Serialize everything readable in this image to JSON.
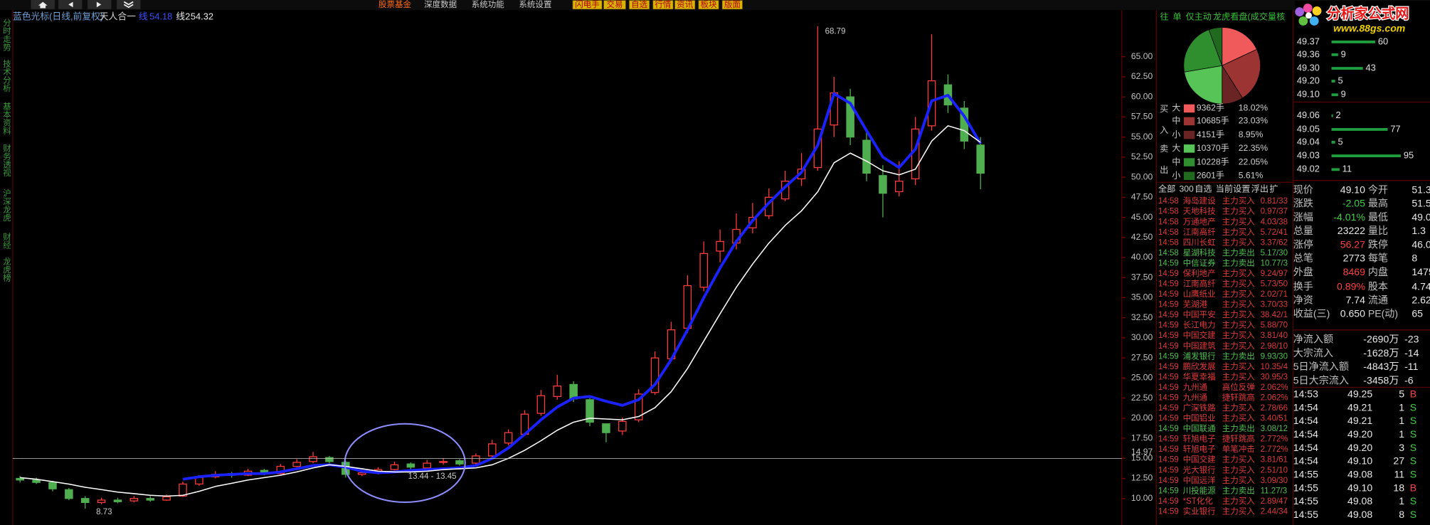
{
  "toolbar": {
    "menus": [
      "股票基金",
      "深度数据",
      "系统功能",
      "系统设置"
    ],
    "buttons": [
      "闪电手",
      "交易",
      "自选",
      "行情",
      "资讯",
      "板块",
      "版面"
    ]
  },
  "logo": {
    "title": "分析家公式网",
    "url": "www.88gs.com"
  },
  "side_tabs": [
    "分时走势",
    "技术分析",
    "基本资料",
    "财务透视",
    "沪深龙虎",
    "财经",
    "龙虎榜"
  ],
  "chart_data": {
    "type": "candlestick",
    "title": "蓝色光标(日线,前复权)",
    "indicator": "天人合一",
    "annotation": "13.44 - 13.45",
    "reference_line": 14.97,
    "ylim": [
      6.7,
      70.7
    ],
    "yticks": [
      {
        "value": 10,
        "label": "10.00"
      },
      {
        "value": 12.5,
        "label": "12.50"
      },
      {
        "value": 15,
        "label": "15.00"
      },
      {
        "value": 17.5,
        "label": "17.50"
      },
      {
        "value": 20,
        "label": "20.00"
      },
      {
        "value": 22.5,
        "label": "22.50"
      },
      {
        "value": 25,
        "label": "25.00"
      },
      {
        "value": 27.5,
        "label": "27.50"
      },
      {
        "value": 30,
        "label": "30.00"
      },
      {
        "value": 32.5,
        "label": "32.50"
      },
      {
        "value": 35,
        "label": "35.00"
      },
      {
        "value": 37.5,
        "label": "37.50"
      },
      {
        "value": 40,
        "label": "40.00"
      },
      {
        "value": 42.5,
        "label": "42.50"
      },
      {
        "value": 45,
        "label": "45.00"
      },
      {
        "value": 47.5,
        "label": "47.50"
      },
      {
        "value": 50,
        "label": "50.00"
      },
      {
        "value": 52.5,
        "label": "52.50"
      },
      {
        "value": 55,
        "label": "55.00"
      },
      {
        "value": 57.5,
        "label": "57.50"
      },
      {
        "value": 60,
        "label": "60.00"
      },
      {
        "value": 62.5,
        "label": "62.50"
      },
      {
        "value": 65,
        "label": "65.00"
      }
    ],
    "grid": false,
    "up_color": "#ff3a3a",
    "down_color": "#4fae50",
    "candles": {
      "open": [
        12.5,
        12.3,
        12.0,
        11.1,
        10.0,
        9.5,
        9.8,
        9.7,
        10.0,
        9.8,
        10.3,
        11.8,
        12.7,
        13.1,
        12.9,
        13.5,
        13.1,
        14.0,
        14.6,
        15.1,
        14.5,
        13.0,
        13.2,
        13.6,
        14.3,
        13.8,
        14.5,
        14.7,
        14.4,
        15.3,
        16.9,
        18.0,
        20.6,
        22.7,
        24.2,
        22.3,
        19.3,
        18.4,
        19.8,
        23.2,
        27.4,
        31.2,
        36.3,
        40.8,
        41.8,
        43.7,
        45.2,
        47.3,
        49.8,
        51.2,
        56.5,
        60.0,
        54.6,
        50.2,
        48.2,
        49.8,
        56.4,
        61.5,
        58.6,
        54.0
      ],
      "close": [
        12.3,
        12.0,
        11.2,
        10.0,
        9.5,
        9.8,
        9.6,
        10.0,
        9.8,
        10.2,
        11.8,
        12.6,
        13.0,
        12.9,
        13.4,
        13.1,
        14.0,
        14.5,
        15.2,
        14.6,
        13.0,
        13.2,
        13.6,
        14.2,
        13.9,
        14.4,
        14.6,
        14.3,
        15.3,
        16.8,
        18.2,
        20.5,
        22.8,
        24.0,
        22.4,
        19.5,
        18.2,
        19.6,
        23.0,
        27.5,
        31.0,
        36.5,
        40.5,
        42.0,
        43.5,
        45.0,
        47.5,
        49.5,
        51.0,
        56.0,
        60.5,
        55.0,
        50.5,
        48.0,
        49.5,
        56.0,
        62.0,
        59.0,
        54.5,
        50.5
      ],
      "high": [
        12.8,
        12.6,
        12.2,
        11.3,
        10.3,
        10.1,
        10.1,
        10.3,
        10.3,
        10.5,
        12.1,
        12.9,
        13.4,
        13.3,
        13.7,
        13.7,
        14.3,
        14.9,
        15.8,
        15.3,
        14.7,
        13.6,
        13.9,
        14.6,
        14.5,
        14.8,
        15.0,
        14.9,
        15.6,
        17.3,
        18.6,
        21.0,
        23.5,
        25.4,
        24.6,
        22.5,
        19.0,
        20.1,
        23.6,
        28.3,
        32.0,
        37.8,
        42.0,
        43.5,
        45.5,
        46.8,
        48.6,
        50.8,
        53.0,
        68.79,
        62.5,
        61.0,
        56.0,
        51.5,
        52.0,
        57.5,
        67.8,
        62.8,
        59.5,
        55.0
      ],
      "low": [
        12.0,
        11.8,
        10.9,
        9.8,
        8.73,
        9.3,
        9.4,
        9.5,
        9.6,
        9.7,
        10.2,
        11.6,
        12.5,
        12.6,
        12.8,
        12.9,
        13.0,
        13.9,
        14.4,
        14.4,
        12.6,
        12.8,
        13.0,
        13.5,
        13.6,
        13.7,
        14.2,
        14.1,
        14.2,
        15.1,
        16.6,
        17.8,
        20.3,
        22.3,
        22.0,
        19.0,
        17.0,
        17.9,
        19.5,
        22.9,
        27.1,
        30.6,
        35.8,
        39.4,
        41.0,
        43.0,
        44.8,
        47.0,
        48.9,
        50.8,
        55.0,
        54.0,
        49.5,
        45.0,
        47.6,
        49.0,
        55.8,
        58.0,
        53.5,
        48.5
      ]
    },
    "series": [
      {
        "name": "线",
        "color": "#1a22ff",
        "values": [
          null,
          null,
          null,
          null,
          null,
          null,
          null,
          null,
          null,
          null,
          12.4,
          12.7,
          12.9,
          13.0,
          13.1,
          13.1,
          13.3,
          13.7,
          14.1,
          14.2,
          13.9,
          13.4,
          13.2,
          13.3,
          13.5,
          13.6,
          13.7,
          13.8,
          14.1,
          15.0,
          16.3,
          18.0,
          19.8,
          21.4,
          22.5,
          22.7,
          22.1,
          21.6,
          22.3,
          24.2,
          27.3,
          31.0,
          35.0,
          38.7,
          42.0,
          44.6,
          46.8,
          48.8,
          50.6,
          54.0,
          60.4,
          59.2,
          55.8,
          52.5,
          51.2,
          53.5,
          59.5,
          60.2,
          57.6,
          54.18
        ]
      },
      {
        "name": "线2",
        "color": "#ffffff",
        "values": [
          12.6,
          12.4,
          12.1,
          11.8,
          11.4,
          11.1,
          10.8,
          10.6,
          10.4,
          10.3,
          10.4,
          10.9,
          11.5,
          11.9,
          12.3,
          12.6,
          12.9,
          13.3,
          13.8,
          14.2,
          14.0,
          13.7,
          13.4,
          13.3,
          13.3,
          13.4,
          13.6,
          13.7,
          13.8,
          14.2,
          15.0,
          16.0,
          17.2,
          18.5,
          19.5,
          20.0,
          19.9,
          19.8,
          20.2,
          21.3,
          23.3,
          26.2,
          29.6,
          33.0,
          36.3,
          39.2,
          41.8,
          44.0,
          45.8,
          48.2,
          51.8,
          53.0,
          52.0,
          50.8,
          50.3,
          51.0,
          54.5,
          56.4,
          55.8,
          54.32
        ]
      }
    ]
  },
  "flow": {
    "tabs": [
      "往",
      "单",
      "仅主动",
      "龙虎看盘(成交量核"
    ],
    "buy_side": "买入",
    "sell_side": "卖出",
    "sizes": [
      "大",
      "中",
      "小",
      "大",
      "中",
      "小"
    ],
    "volumes": [
      "9362手",
      "10685手",
      "4151手",
      "10370手",
      "10228手",
      "2601手"
    ],
    "values": [
      18.02,
      23.03,
      8.95,
      22.35,
      22.05,
      5.61
    ],
    "value_labels": [
      "18.02%",
      "23.03%",
      "8.95%",
      "22.35%",
      "22.05%",
      "5.61%"
    ],
    "colors": [
      "#f05a5a",
      "#9c3434",
      "#6a2424",
      "#56c456",
      "#2f8f2f",
      "#1f6a1f"
    ]
  },
  "radar": {
    "tabs": [
      "全部",
      "300",
      "自选",
      "当前",
      "设置",
      "浮出",
      "扩"
    ],
    "rows": [
      [
        "14:58",
        "海岛建设",
        "主力买入",
        "0.81/33"
      ],
      [
        "14:58",
        "天地科技",
        "主力买入",
        "0.97/37"
      ],
      [
        "14:58",
        "万通地产",
        "主力买入",
        "4.03/38"
      ],
      [
        "14:58",
        "江南高纤",
        "主力买入",
        "5.72/41"
      ],
      [
        "14:58",
        "四川长虹",
        "主力买入",
        "3.37/62"
      ],
      [
        "14:58",
        "星湖科技",
        "主力卖出",
        "5.17/30"
      ],
      [
        "14:59",
        "中信证券",
        "主力卖出",
        "10.77/3"
      ],
      [
        "14:59",
        "保利地产",
        "主力买入",
        "9.24/97"
      ],
      [
        "14:59",
        "江南高纤",
        "主力买入",
        "5.73/50"
      ],
      [
        "14:59",
        "山鹰纸业",
        "主力买入",
        "2.02/71"
      ],
      [
        "14:59",
        "芜湖港",
        "主力买入",
        "3.70/33"
      ],
      [
        "14:59",
        "中国平安",
        "主力买入",
        "38.42/1"
      ],
      [
        "14:59",
        "长江电力",
        "主力买入",
        "5.88/70"
      ],
      [
        "14:59",
        "中国交建",
        "主力买入",
        "3.81/40"
      ],
      [
        "14:59",
        "中国建筑",
        "主力买入",
        "2.98/10"
      ],
      [
        "14:59",
        "浦发银行",
        "主力卖出",
        "9.93/30"
      ],
      [
        "14:59",
        "鹏欣发展",
        "主力买入",
        "10.35/4"
      ],
      [
        "14:59",
        "华夏幸福",
        "主力买入",
        "30.95/3"
      ],
      [
        "14:59",
        "九州通",
        "高位反弹",
        "2.062%"
      ],
      [
        "14:59",
        "九州通",
        "捷轩跳高",
        "2.062%"
      ],
      [
        "14:59",
        "广深铁路",
        "主力买入",
        "2.78/66"
      ],
      [
        "14:59",
        "中国铝业",
        "主力买入",
        "3.40/51"
      ],
      [
        "14:59",
        "中国联通",
        "主力卖出",
        "3.08/12"
      ],
      [
        "14:59",
        "轩旭电子",
        "捷轩跳高",
        "2.772%"
      ],
      [
        "14:59",
        "轩旭电子",
        "单笔冲击",
        "2.772%"
      ],
      [
        "14:59",
        "中国交建",
        "主力买入",
        "3.81/61"
      ],
      [
        "14:59",
        "光大银行",
        "主力买入",
        "2.51/10"
      ],
      [
        "14:59",
        "中国远洋",
        "主力买入",
        "3.09/30"
      ],
      [
        "14:59",
        "川投能源",
        "主力卖出",
        "11.27/3"
      ],
      [
        "14:59",
        "*ST化化",
        "主力买入",
        "2.89/47"
      ],
      [
        "14:59",
        "实业银行",
        "主力买入",
        "2.44/34"
      ]
    ]
  },
  "order_book": {
    "asks": [
      {
        "price": "49.37",
        "volume": 60
      },
      {
        "price": "49.36",
        "volume": 9
      },
      {
        "price": "49.30",
        "volume": 43
      },
      {
        "price": "49.20",
        "volume": 5
      },
      {
        "price": "49.10",
        "volume": 9
      }
    ],
    "bids": [
      {
        "price": "49.06",
        "volume": 2
      },
      {
        "price": "49.05",
        "volume": 77
      },
      {
        "price": "49.04",
        "volume": 5
      },
      {
        "price": "49.03",
        "volume": 95
      },
      {
        "price": "49.02",
        "volume": 11
      }
    ]
  },
  "quote": {
    "rows": [
      [
        "现价",
        "49.10",
        "今开",
        "51.3"
      ],
      [
        "涨跌",
        "-2.05",
        "最高",
        "51.5"
      ],
      [
        "涨幅",
        "-4.01%",
        "最低",
        "49.0"
      ],
      [
        "总量",
        "23222",
        "量比",
        "1.3"
      ],
      [
        "涨停",
        "56.27",
        "跌停",
        "46.0"
      ],
      [
        "总笔",
        "2773",
        "每笔",
        "8"
      ],
      [
        "外盘",
        "8469",
        "内盘",
        "1475"
      ],
      [
        "换手",
        "0.89%",
        "股本",
        "4.74"
      ],
      [
        "净资",
        "7.74",
        "流通",
        "2.62"
      ],
      [
        "收益(三)",
        "0.650",
        "PE(动)",
        "65"
      ]
    ]
  },
  "fund_flow": {
    "rows": [
      [
        "净流入额",
        "-2690万",
        "-23"
      ],
      [
        "大宗流入",
        "-1628万",
        "-14"
      ],
      [
        "5日净流入额",
        "-4843万",
        "-11"
      ],
      [
        "5日大宗流入",
        "-3458万",
        "-6"
      ]
    ]
  },
  "ticks": {
    "rows": [
      [
        "14:53",
        "49.25",
        "5",
        "B"
      ],
      [
        "14:54",
        "49.21",
        "1",
        "S"
      ],
      [
        "14:54",
        "49.21",
        "1",
        "S"
      ],
      [
        "14:54",
        "49.20",
        "1",
        "S"
      ],
      [
        "14:54",
        "49.20",
        "3",
        "S"
      ],
      [
        "14:54",
        "49.10",
        "27",
        "S"
      ],
      [
        "14:55",
        "49.08",
        "11",
        "S"
      ],
      [
        "14:55",
        "49.10",
        "18",
        "B"
      ],
      [
        "14:55",
        "49.08",
        "1",
        "S"
      ],
      [
        "14:55",
        "49.08",
        "8",
        "S"
      ]
    ]
  }
}
